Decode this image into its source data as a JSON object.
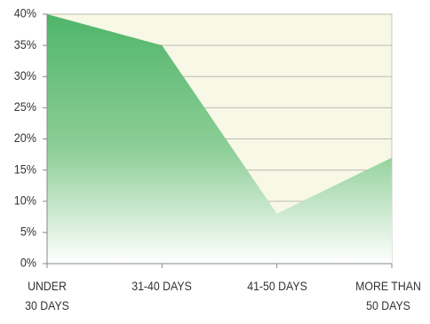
{
  "chart_data": {
    "type": "area",
    "categories": [
      "UNDER\n30 DAYS",
      "31-40 DAYS",
      "41-50 DAYS",
      "MORE THAN\n50 DAYS"
    ],
    "values": [
      40,
      35,
      8,
      17
    ],
    "color": "#4fb56a",
    "ylim": [
      0,
      40
    ],
    "yticks": [
      {
        "value": 0,
        "label": "0%"
      },
      {
        "value": 5,
        "label": "5%"
      },
      {
        "value": 10,
        "label": "10%"
      },
      {
        "value": 15,
        "label": "15%"
      },
      {
        "value": 20,
        "label": "20%"
      },
      {
        "value": 25,
        "label": "25%"
      },
      {
        "value": 30,
        "label": "30%"
      },
      {
        "value": 35,
        "label": "35%"
      },
      {
        "value": 40,
        "label": "40%"
      }
    ],
    "grid": true
  }
}
